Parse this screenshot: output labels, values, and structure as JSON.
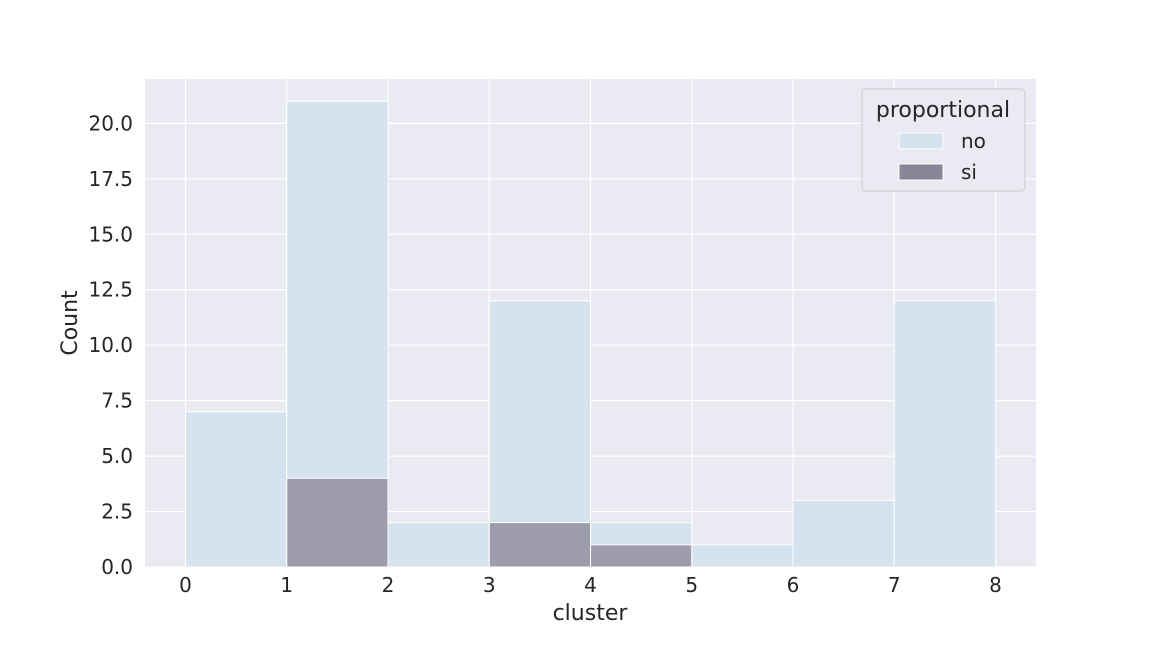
{
  "chart_data": {
    "type": "bar",
    "xlabel": "cluster",
    "ylabel": "Count",
    "xlim": [
      -0.4,
      8.4
    ],
    "ylim": [
      0,
      22
    ],
    "x_ticks": [
      0,
      1,
      2,
      3,
      4,
      5,
      6,
      7,
      8
    ],
    "y_ticks": [
      0.0,
      2.5,
      5.0,
      7.5,
      10.0,
      12.5,
      15.0,
      17.5,
      20.0
    ],
    "y_tick_labels": [
      "0.0",
      "2.5",
      "5.0",
      "7.5",
      "10.0",
      "12.5",
      "15.0",
      "17.5",
      "20.0"
    ],
    "bin_edges": [
      0,
      1,
      2,
      3,
      4,
      5,
      6,
      7,
      8
    ],
    "grid": true,
    "legend": {
      "title": "proportional",
      "placement": "top-right"
    },
    "series": [
      {
        "name": "no",
        "color": "#d5e3ee",
        "values": [
          7,
          21,
          2,
          12,
          2,
          1,
          3,
          12
        ]
      },
      {
        "name": "si",
        "color": "#8a8497",
        "values": [
          0,
          4,
          0,
          2,
          1,
          0,
          0,
          0
        ]
      }
    ],
    "background_color": "#eaeaf2",
    "overlap_color": "#a6afc1"
  }
}
